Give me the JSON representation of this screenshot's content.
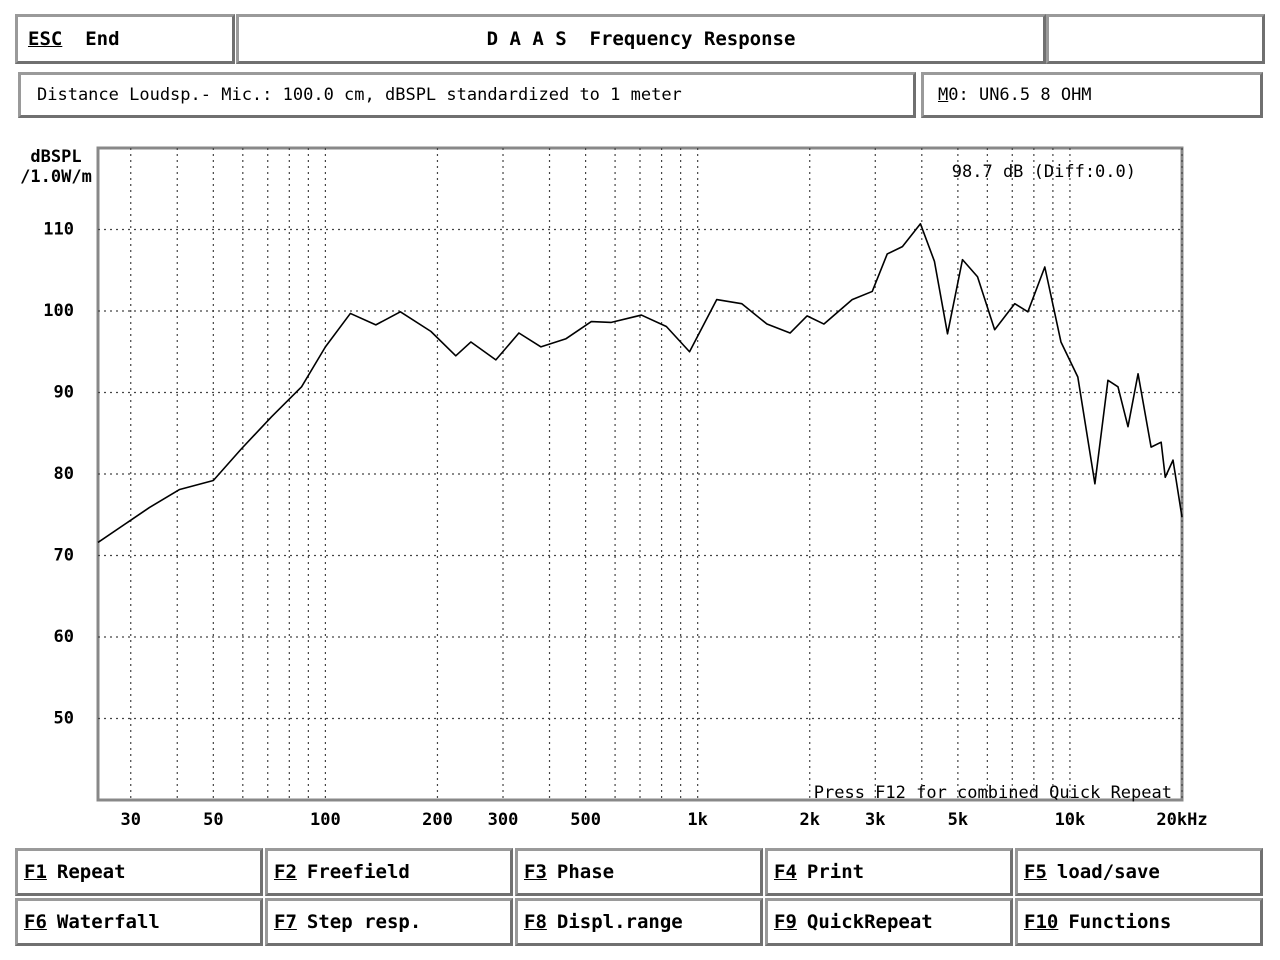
{
  "header": {
    "esc_key": "ESC",
    "esc_label": "End",
    "title": "D A A S  Frequency Response"
  },
  "info": {
    "measurement": "Distance Loudsp.- Mic.: 100.0 cm, dBSPL standardized to 1 meter",
    "model": "M0: UN6.5 8 OHM"
  },
  "chart_data": {
    "type": "line",
    "y_label": "dBSPL",
    "y_label_unit": "/1.0W/m",
    "readout": "98.7 dB (Diff:0.0)",
    "note": "Press F12 for combined Quick Repeat",
    "x_log": true,
    "grid": true,
    "xlim": [
      24.5,
      20000
    ],
    "ylim": [
      40,
      120
    ],
    "xticks": [
      30,
      50,
      100,
      200,
      300,
      500,
      {
        "value": 1000,
        "label": "1k"
      },
      {
        "value": 2000,
        "label": "2k"
      },
      {
        "value": 3000,
        "label": "3k"
      },
      {
        "value": 5000,
        "label": "5k"
      },
      {
        "value": 10000,
        "label": "10k"
      },
      {
        "value": 20000,
        "label": "20kHz"
      }
    ],
    "xminor": [
      40,
      60,
      70,
      80,
      90,
      400,
      600,
      700,
      800,
      900,
      4000,
      6000,
      7000,
      8000,
      9000
    ],
    "yticks": [
      50,
      60,
      70,
      80,
      90,
      100,
      110
    ],
    "x": [
      24.5,
      33.7,
      40.6,
      50,
      59.5,
      71.6,
      86.3,
      100,
      116.7,
      136.6,
      159,
      192,
      224,
      246,
      287,
      331,
      379,
      443,
      518,
      586,
      706,
      824,
      951,
      1125,
      1313,
      1535,
      1771,
      1967,
      2184,
      2600,
      2944,
      3230,
      3548,
      3967,
      4325,
      4690,
      5145,
      5646,
      6278,
      7110,
      7710,
      8560,
      9460,
      10500,
      11670,
      12650,
      13460,
      14320,
      15240,
      16520,
      17580,
      18030,
      18920,
      20000
    ],
    "series": [
      {
        "color": "#000000",
        "values": [
          71.6,
          75.9,
          78.1,
          79.2,
          83.1,
          87.0,
          90.7,
          95.6,
          99.7,
          98.3,
          99.9,
          97.5,
          94.5,
          96.2,
          94.0,
          97.3,
          95.6,
          96.6,
          98.7,
          98.6,
          99.5,
          98.1,
          95.0,
          101.4,
          100.9,
          98.4,
          97.3,
          99.4,
          98.4,
          101.4,
          102.4,
          107.0,
          107.9,
          110.7,
          106.1,
          97.2,
          106.3,
          104.2,
          97.7,
          100.9,
          99.9,
          105.4,
          96.2,
          91.9,
          78.8,
          91.5,
          90.7,
          85.8,
          92.3,
          83.3,
          83.9,
          79.6,
          81.7,
          74.7
        ]
      }
    ]
  },
  "function_keys": [
    {
      "key": "F1",
      "label": "Repeat"
    },
    {
      "key": "F2",
      "label": "Freefield"
    },
    {
      "key": "F3",
      "label": "Phase"
    },
    {
      "key": "F4",
      "label": "Print"
    },
    {
      "key": "F5",
      "label": "load/save"
    },
    {
      "key": "F6",
      "label": "Waterfall"
    },
    {
      "key": "F7",
      "label": "Step resp."
    },
    {
      "key": "F8",
      "label": "Displ.range"
    },
    {
      "key": "F9",
      "label": "QuickRepeat"
    },
    {
      "key": "F10",
      "label": "Functions"
    }
  ]
}
